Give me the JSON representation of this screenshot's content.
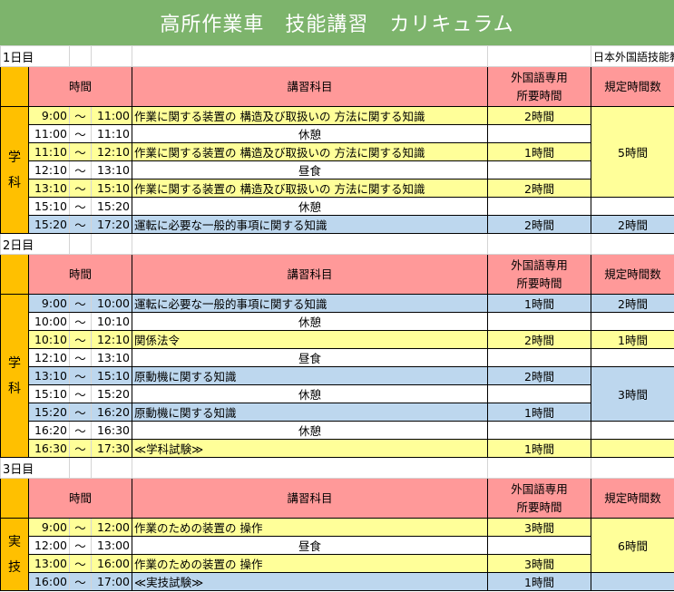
{
  "title": "高所作業車　技能講習　カリキュラム",
  "company": "日本外国語技能教習センター株式会社",
  "headers": {
    "time": "時間",
    "subject": "講習科目",
    "foreign_hours": "外国語専用\n所要時間",
    "required_hours": "規定時間数"
  },
  "tilde": "～",
  "colors": {
    "title": "#7db46c",
    "header": "#ff9999",
    "category": "#ffc000",
    "yellow": "#ffff99",
    "blue": "#bdd7ee"
  },
  "days": [
    {
      "label": "1日目",
      "category": "学\n科",
      "rows": [
        {
          "start": "9:00",
          "end": "11:00",
          "subject": "作業に関する装置の 構造及び取扱いの 方法に関する知識",
          "hours": "2時間",
          "color": "y"
        },
        {
          "start": "11:00",
          "end": "11:10",
          "subject": "休憩",
          "hours": "",
          "color": "w",
          "break": true
        },
        {
          "start": "11:10",
          "end": "12:10",
          "subject": "作業に関する装置の 構造及び取扱いの 方法に関する知識",
          "hours": "1時間",
          "color": "y"
        },
        {
          "start": "12:10",
          "end": "13:10",
          "subject": "昼食",
          "hours": "",
          "color": "w",
          "break": true
        },
        {
          "start": "13:10",
          "end": "15:10",
          "subject": "作業に関する装置の 構造及び取扱いの 方法に関する知識",
          "hours": "2時間",
          "color": "y"
        },
        {
          "start": "15:10",
          "end": "15:20",
          "subject": "休憩",
          "hours": "",
          "color": "w",
          "break": true
        },
        {
          "start": "15:20",
          "end": "17:20",
          "subject": "運転に必要な一般的事項に関する知識",
          "hours": "2時間",
          "color": "b"
        }
      ],
      "required": [
        {
          "span": 5,
          "value": "5時間",
          "color": "y"
        },
        {
          "span": 1,
          "value": "",
          "color": "w"
        },
        {
          "span": 1,
          "value": "2時間",
          "color": "b"
        }
      ]
    },
    {
      "label": "2日目",
      "category": "学\n科",
      "rows": [
        {
          "start": "9:00",
          "end": "10:00",
          "subject": "運転に必要な一般的事項に関する知識",
          "hours": "1時間",
          "color": "b"
        },
        {
          "start": "10:00",
          "end": "10:10",
          "subject": "休憩",
          "hours": "",
          "color": "w",
          "break": true
        },
        {
          "start": "10:10",
          "end": "12:10",
          "subject": "関係法令",
          "hours": "2時間",
          "color": "y"
        },
        {
          "start": "12:10",
          "end": "13:10",
          "subject": "昼食",
          "hours": "",
          "color": "w",
          "break": true
        },
        {
          "start": "13:10",
          "end": "15:10",
          "subject": "原動機に関する知識",
          "hours": "2時間",
          "color": "b"
        },
        {
          "start": "15:10",
          "end": "15:20",
          "subject": "休憩",
          "hours": "",
          "color": "w",
          "break": true
        },
        {
          "start": "15:20",
          "end": "16:20",
          "subject": "原動機に関する知識",
          "hours": "1時間",
          "color": "b"
        },
        {
          "start": "16:20",
          "end": "16:30",
          "subject": "休憩",
          "hours": "",
          "color": "w",
          "break": true
        },
        {
          "start": "16:30",
          "end": "17:30",
          "subject": "≪学科試験≫",
          "hours": "1時間",
          "color": "y"
        }
      ],
      "required": [
        {
          "span": 1,
          "value": "2時間",
          "color": "b"
        },
        {
          "span": 1,
          "value": "",
          "color": "w"
        },
        {
          "span": 1,
          "value": "1時間",
          "color": "y"
        },
        {
          "span": 1,
          "value": "",
          "color": "w"
        },
        {
          "span": 3,
          "value": "3時間",
          "color": "b"
        },
        {
          "span": 1,
          "value": "",
          "color": "w"
        },
        {
          "span": 1,
          "value": "",
          "color": "y"
        }
      ]
    },
    {
      "label": "3日目",
      "category": "実\n技",
      "rows": [
        {
          "start": "9:00",
          "end": "12:00",
          "subject": "作業のための装置の 操作",
          "hours": "3時間",
          "color": "y"
        },
        {
          "start": "12:00",
          "end": "13:00",
          "subject": "昼食",
          "hours": "",
          "color": "w",
          "break": true
        },
        {
          "start": "13:00",
          "end": "16:00",
          "subject": "作業のための装置の 操作",
          "hours": "3時間",
          "color": "y"
        },
        {
          "start": "16:00",
          "end": "17:00",
          "subject": "≪実技試験≫",
          "hours": "1時間",
          "color": "b"
        }
      ],
      "required": [
        {
          "span": 3,
          "value": "6時間",
          "color": "y"
        },
        {
          "span": 1,
          "value": "",
          "color": "b"
        }
      ]
    }
  ]
}
